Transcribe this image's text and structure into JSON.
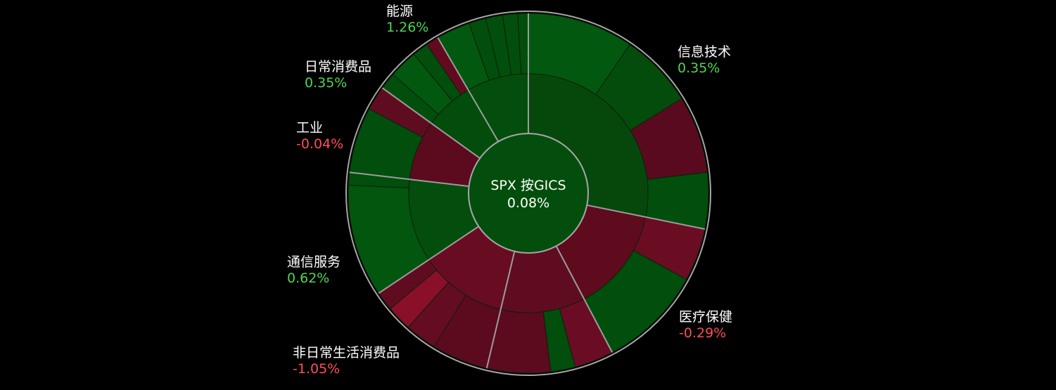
{
  "chart_data": {
    "type": "sunburst",
    "center": {
      "title": "SPX 按GICS",
      "value": "0.08%"
    },
    "colors": {
      "positive": "#4fd64f",
      "negative": "#ff4d5a",
      "ring": "#a6a6a6",
      "gap": "#9c9c9c",
      "sub_divider": "#0a200a"
    },
    "sectors": [
      {
        "key": "it",
        "name": "信息技术",
        "change": "0.35%",
        "dir": "pos",
        "weight": 29.6,
        "fill": "#06480c",
        "children": [
          {
            "weight": 10,
            "fill": "#03580f"
          },
          {
            "weight": 7,
            "fill": "#044c0c"
          },
          {
            "weight": 7.3,
            "fill": "#5a0a1e"
          },
          {
            "weight": 5.3,
            "fill": "#024e0c"
          }
        ]
      },
      {
        "key": "hc",
        "name": "医疗保健",
        "change": "-0.29%",
        "dir": "neg",
        "weight": 14.8,
        "fill": "#5e0b1e",
        "children": [
          {
            "weight": 5,
            "fill": "#6a0d22"
          },
          {
            "weight": 9.8,
            "fill": "#024e0c"
          }
        ]
      },
      {
        "key": "cd",
        "name": "非日常生活消费品",
        "change": "-1.05%",
        "dir": "neg",
        "weight": 12,
        "fill": "#600c20",
        "children": [
          {
            "weight": 3.7,
            "fill": "#6a0d24"
          },
          {
            "weight": 2.3,
            "fill": "#024e0c"
          },
          {
            "weight": 6,
            "fill": "#5c0a1e"
          }
        ]
      },
      {
        "key": "fin",
        "name": "",
        "change": "",
        "dir": "neg",
        "weight": 12.5,
        "fill": "#680c22",
        "children": [
          {
            "weight": 5.3,
            "fill": "#5c0a1e"
          },
          {
            "weight": 3,
            "fill": "#640c22"
          },
          {
            "weight": 2.4,
            "fill": "#8a0f28"
          },
          {
            "weight": 1.8,
            "fill": "#600c20"
          }
        ]
      },
      {
        "key": "comm",
        "name": "通信服务",
        "change": "0.62%",
        "dir": "pos",
        "weight": 11.8,
        "fill": "#034e0c",
        "children": [
          {
            "weight": 10.6,
            "fill": "#03560e"
          },
          {
            "weight": 1.2,
            "fill": "#024e0c"
          }
        ]
      },
      {
        "key": "ind",
        "name": "工业",
        "change": "-0.04%",
        "dir": "neg",
        "weight": 8.5,
        "fill": "#5c0a1e",
        "children": [
          {
            "weight": 6.2,
            "fill": "#024e0c"
          },
          {
            "weight": 2.3,
            "fill": "#600c20"
          }
        ]
      },
      {
        "key": "staples",
        "name": "日常消费品",
        "change": "0.35%",
        "dir": "pos",
        "weight": 7,
        "fill": "#024c0c",
        "children": [
          {
            "weight": 1.6,
            "fill": "#024e0c"
          },
          {
            "weight": 2.7,
            "fill": "#03580f"
          },
          {
            "weight": 1.5,
            "fill": "#024e0c"
          },
          {
            "weight": 1.2,
            "fill": "#620a20"
          }
        ]
      },
      {
        "key": "energy",
        "name": "能源",
        "change": "1.26%",
        "dir": "pos",
        "weight": 8.8,
        "fill": "#034e0c",
        "children": [
          {
            "weight": 3.2,
            "fill": "#03580f"
          },
          {
            "weight": 1.6,
            "fill": "#024e0c"
          },
          {
            "weight": 1.6,
            "fill": "#024e0c"
          },
          {
            "weight": 1.4,
            "fill": "#024e0c"
          },
          {
            "weight": 1.0,
            "fill": "#024e0c"
          }
        ]
      }
    ]
  }
}
